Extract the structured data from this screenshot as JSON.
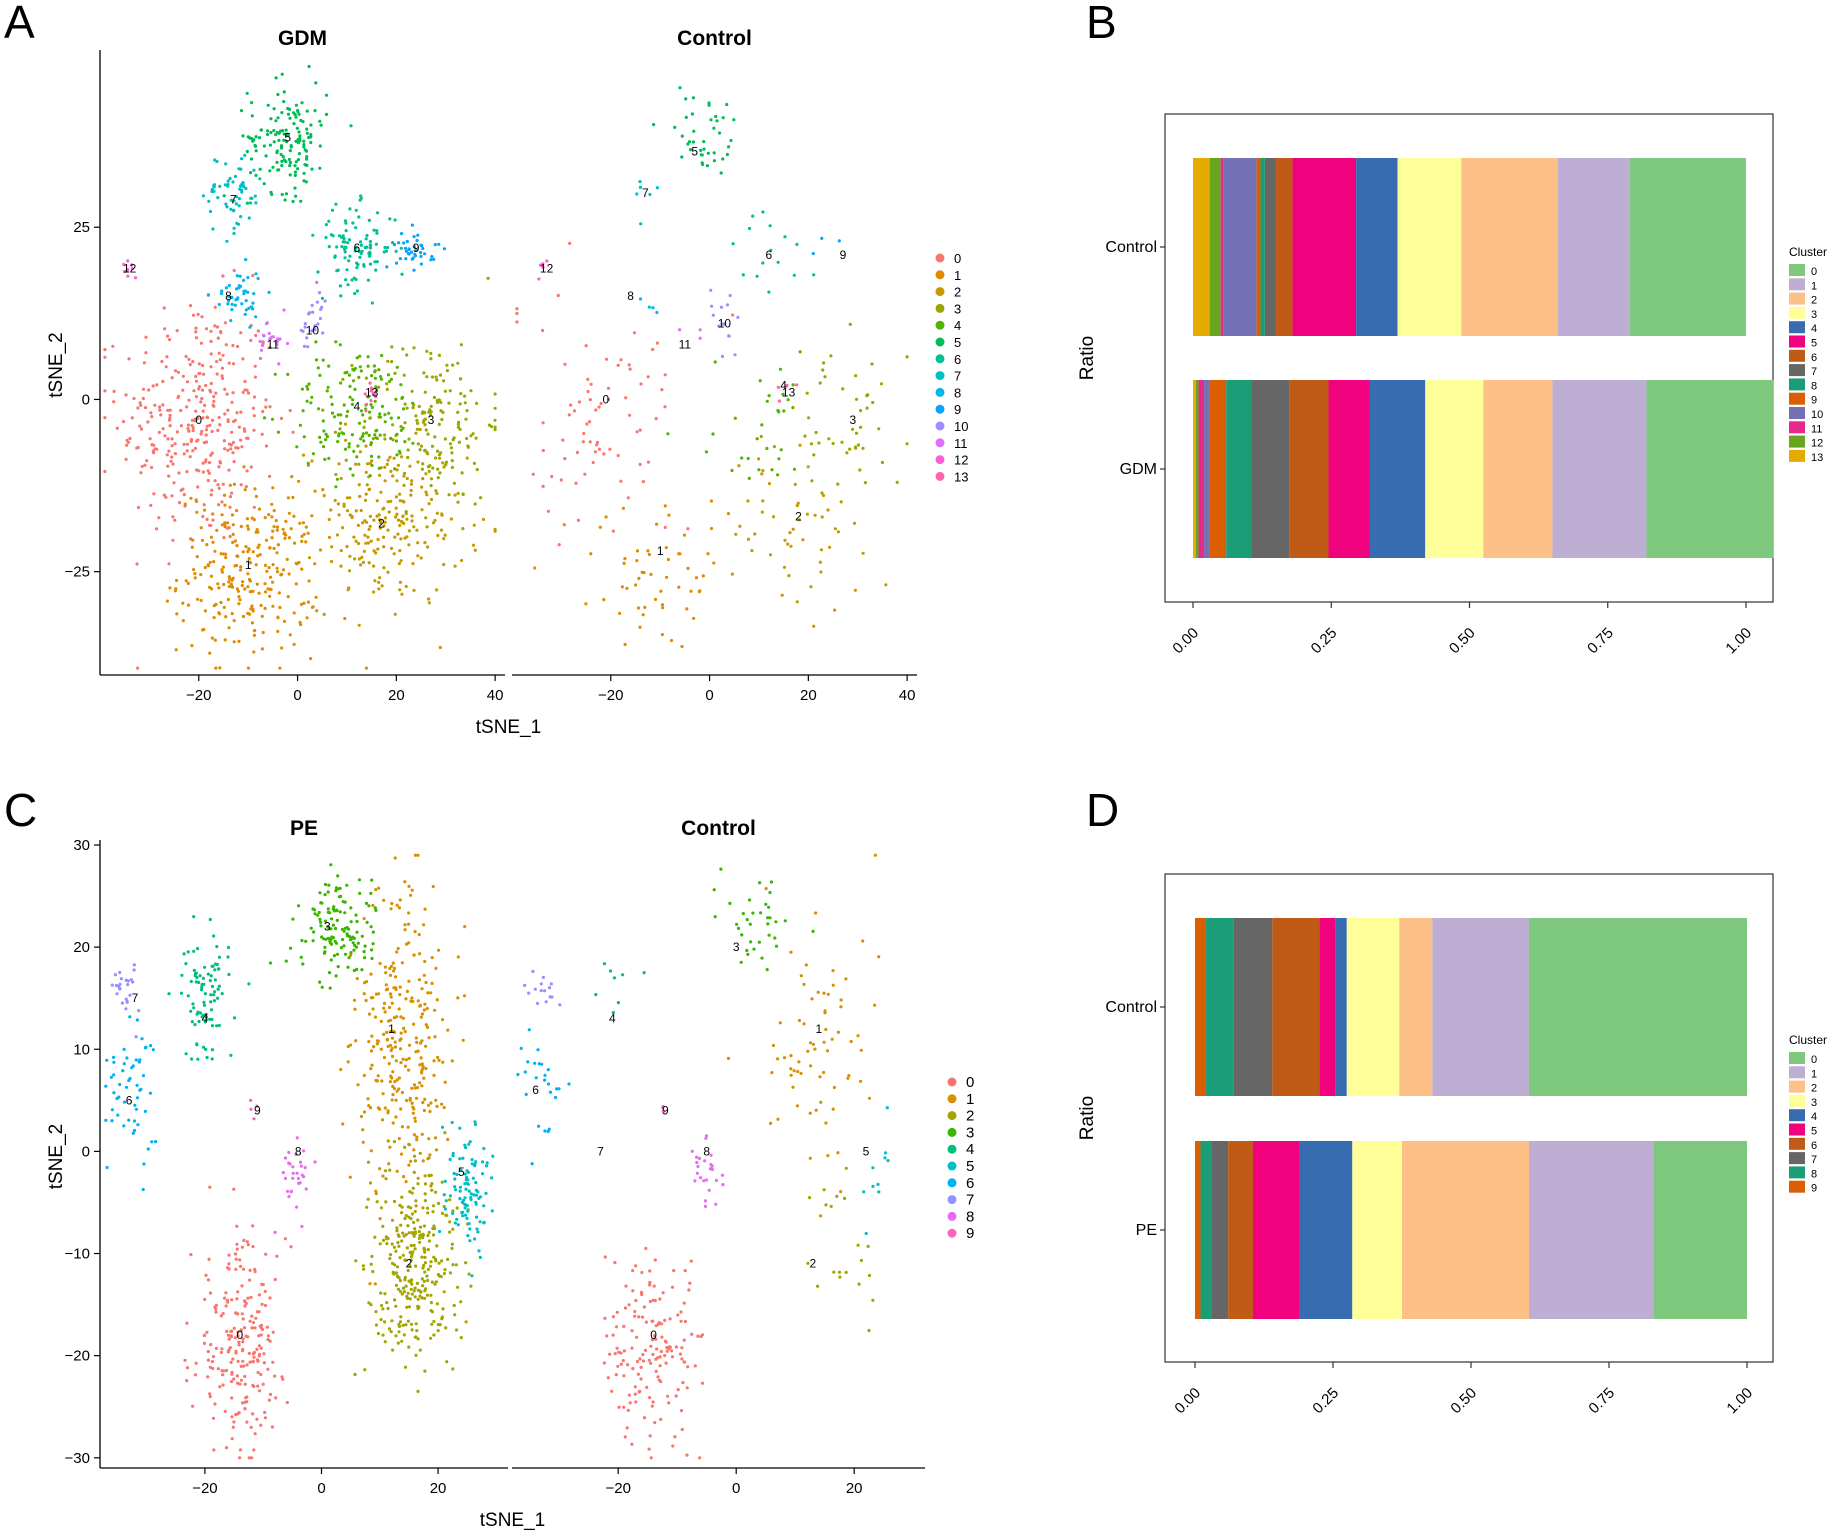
{
  "chart_data": [
    {
      "panel": "A",
      "type": "scatter",
      "xlabel": "tSNE_1",
      "ylabel": "tSNE_2",
      "facets": [
        "GDM",
        "Control"
      ],
      "xlim": [
        -40,
        42
      ],
      "ylim": [
        -40,
        50
      ],
      "xticks": [
        "-20",
        "0",
        "20",
        "40"
      ],
      "yticks": [
        "-25",
        "0",
        "25"
      ],
      "cluster_labels": [
        "0",
        "1",
        "2",
        "3",
        "4",
        "5",
        "6",
        "7",
        "8",
        "9",
        "10",
        "11",
        "12",
        "13"
      ],
      "colors": [
        "#F8766D",
        "#E08B00",
        "#C49A00",
        "#99A800",
        "#53B400",
        "#00BC56",
        "#00C094",
        "#00BFC4",
        "#00B6EB",
        "#06A4FF",
        "#A58AFF",
        "#DF70F8",
        "#FB61D7",
        "#FF66A8"
      ],
      "clusters": [
        {
          "id": "0",
          "cx": -20,
          "cy": -3,
          "sx": 8,
          "sy": 9,
          "n": [
            330,
            75
          ],
          "n_control_cx": -23
        },
        {
          "id": "1",
          "cx": -10,
          "cy": -25,
          "sx": 7,
          "sy": 6,
          "n": [
            260,
            55
          ]
        },
        {
          "id": "2",
          "cx": 18,
          "cy": -18,
          "sx": 8,
          "sy": 6,
          "n": [
            230,
            55
          ]
        },
        {
          "id": "3",
          "cx": 27,
          "cy": -3,
          "sx": 7,
          "sy": 6,
          "n": [
            170,
            45
          ]
        },
        {
          "id": "4",
          "cx": 12,
          "cy": -2,
          "sx": 7,
          "sy": 5,
          "n": [
            150,
            30
          ]
        },
        {
          "id": "5",
          "cx": -2,
          "cy": 38,
          "sx": 4,
          "sy": 4,
          "n": [
            150,
            40
          ]
        },
        {
          "id": "6",
          "cx": 12,
          "cy": 22,
          "sx": 4,
          "sy": 3,
          "n": [
            100,
            15
          ]
        },
        {
          "id": "7",
          "cx": -13,
          "cy": 30,
          "sx": 3,
          "sy": 3,
          "n": [
            60,
            6
          ]
        },
        {
          "id": "8",
          "cx": -12,
          "cy": 15,
          "sx": 2.5,
          "sy": 2,
          "n": [
            45,
            4
          ]
        },
        {
          "id": "9",
          "cx": 24,
          "cy": 22,
          "sx": 2,
          "sy": 1.5,
          "n": [
            40,
            3
          ]
        },
        {
          "id": "10",
          "cx": 3,
          "cy": 11,
          "sx": 1.5,
          "sy": 2.5,
          "n": [
            25,
            15
          ]
        },
        {
          "id": "11",
          "cx": -5,
          "cy": 8,
          "sx": 1.5,
          "sy": 2,
          "n": [
            20,
            3
          ]
        },
        {
          "id": "12",
          "cx": -34,
          "cy": 19,
          "sx": 0.8,
          "sy": 0.8,
          "n": [
            10,
            5
          ]
        },
        {
          "id": "13",
          "cx": 15,
          "cy": 1,
          "sx": 1,
          "sy": 1,
          "n": [
            10,
            4
          ]
        }
      ],
      "label_positions": {
        "GDM": [
          [
            -20,
            -3
          ],
          [
            -10,
            -24
          ],
          [
            17,
            -18
          ],
          [
            27,
            -3
          ],
          [
            12,
            -1
          ],
          [
            -2,
            38
          ],
          [
            12,
            22
          ],
          [
            -13,
            29
          ],
          [
            -14,
            15
          ],
          [
            24,
            22
          ],
          [
            3,
            10
          ],
          [
            -5,
            8
          ],
          [
            -34,
            19
          ],
          [
            15,
            1
          ]
        ],
        "Control": [
          [
            -21,
            0
          ],
          [
            -10,
            -22
          ],
          [
            18,
            -17
          ],
          [
            29,
            -3
          ],
          [
            15,
            2
          ],
          [
            -3,
            36
          ],
          [
            12,
            21
          ],
          [
            -13,
            30
          ],
          [
            -16,
            15
          ],
          [
            27,
            21
          ],
          [
            3,
            11
          ],
          [
            -5,
            8
          ],
          [
            -33,
            19
          ],
          [
            16,
            1
          ]
        ]
      }
    },
    {
      "panel": "B",
      "type": "bar",
      "orientation": "horizontal",
      "stacked": true,
      "ylabel": "Ratio",
      "categories": [
        "Control",
        "GDM"
      ],
      "xticks": [
        "0.00",
        "0.25",
        "0.50",
        "0.75",
        "1.00"
      ],
      "legend_title": "Cluster",
      "legend_labels": [
        "0",
        "1",
        "2",
        "3",
        "4",
        "5",
        "6",
        "7",
        "8",
        "9",
        "10",
        "11",
        "12",
        "13"
      ],
      "colors": [
        "#7FC97F",
        "#BEAED4",
        "#FDC086",
        "#FFFF99",
        "#386CB0",
        "#F0027F",
        "#BF5B17",
        "#666666",
        "#1B9E77",
        "#D95F02",
        "#7570B3",
        "#E7298A",
        "#66A61E",
        "#E6AB02"
      ],
      "series_order": [
        "13",
        "12",
        "11",
        "10",
        "9",
        "8",
        "7",
        "6",
        "5",
        "4",
        "3",
        "2",
        "1",
        "0"
      ],
      "values": {
        "Control": [
          0.21,
          0.13,
          0.175,
          0.115,
          0.075,
          0.115,
          0.03,
          0.02,
          0.008,
          0.007,
          0.06,
          0.005,
          0.02,
          0.03
        ],
        "GDM": [
          0.23,
          0.17,
          0.125,
          0.105,
          0.1,
          0.075,
          0.07,
          0.07,
          0.045,
          0.03,
          0.01,
          0.01,
          0.005,
          0.005
        ]
      }
    },
    {
      "panel": "C",
      "type": "scatter",
      "xlabel": "tSNE_1",
      "ylabel": "tSNE_2",
      "facets": [
        "PE",
        "Control"
      ],
      "xlim": [
        -38,
        32
      ],
      "ylim": [
        -31,
        30
      ],
      "xticks": [
        "-20",
        "0",
        "20"
      ],
      "yticks": [
        "-30",
        "-20",
        "-10",
        "0",
        "10",
        "20",
        "30"
      ],
      "cluster_labels": [
        "0",
        "1",
        "2",
        "3",
        "4",
        "5",
        "6",
        "7",
        "8",
        "9"
      ],
      "colors": [
        "#F8766D",
        "#D89000",
        "#A3A500",
        "#39B600",
        "#00BF7D",
        "#00BFC4",
        "#00B0F6",
        "#9590FF",
        "#E76BF3",
        "#FF62BC"
      ],
      "clusters": [
        {
          "id": "0",
          "cx": -14,
          "cy": -19,
          "sx": 4,
          "sy": 5,
          "n": [
            230,
            160
          ]
        },
        {
          "id": "1",
          "cx": 14,
          "cy": 10,
          "sx": 4,
          "sy": 8,
          "n": [
            300,
            70
          ]
        },
        {
          "id": "2",
          "cx": 16,
          "cy": -11,
          "sx": 4,
          "sy": 5,
          "n": [
            300,
            20
          ]
        },
        {
          "id": "3",
          "cx": 3,
          "cy": 22,
          "sx": 3.5,
          "sy": 2.5,
          "n": [
            130,
            35
          ]
        },
        {
          "id": "4",
          "cx": -20,
          "cy": 15,
          "sx": 2,
          "sy": 3,
          "n": [
            90,
            8
          ]
        },
        {
          "id": "5",
          "cx": 25,
          "cy": -3,
          "sx": 2,
          "sy": 3,
          "n": [
            100,
            10
          ]
        },
        {
          "id": "6",
          "cx": -33,
          "cy": 6,
          "sx": 2,
          "sy": 3,
          "n": [
            55,
            25
          ]
        },
        {
          "id": "7",
          "cx": -33,
          "cy": 16,
          "sx": 1.2,
          "sy": 1.5,
          "n": [
            25,
            15
          ]
        },
        {
          "id": "8",
          "cx": -5,
          "cy": -2,
          "sx": 1.5,
          "sy": 2,
          "n": [
            30,
            25
          ]
        },
        {
          "id": "9",
          "cx": -12,
          "cy": 4,
          "sx": 0.5,
          "sy": 0.8,
          "n": [
            4,
            3
          ]
        }
      ],
      "label_positions": {
        "PE": [
          [
            -14,
            -18
          ],
          [
            12,
            12
          ],
          [
            15,
            -11
          ],
          [
            1,
            22
          ],
          [
            -20,
            13
          ],
          [
            24,
            -2
          ],
          [
            -33,
            5
          ],
          [
            -32,
            15
          ],
          [
            -4,
            0
          ],
          [
            -11,
            4
          ]
        ],
        "Control": [
          [
            -14,
            -18
          ],
          [
            14,
            12
          ],
          [
            13,
            -11
          ],
          [
            0,
            20
          ],
          [
            -21,
            13
          ],
          [
            22,
            0
          ],
          [
            -34,
            6
          ],
          [
            -23,
            0
          ],
          [
            -5,
            0
          ],
          [
            -12,
            4
          ]
        ]
      }
    },
    {
      "panel": "D",
      "type": "bar",
      "orientation": "horizontal",
      "stacked": true,
      "ylabel": "Ratio",
      "categories": [
        "Control",
        "PE"
      ],
      "xticks": [
        "0.00",
        "0.25",
        "0.50",
        "0.75",
        "1.00"
      ],
      "legend_title": "Cluster",
      "legend_labels": [
        "0",
        "1",
        "2",
        "3",
        "4",
        "5",
        "6",
        "7",
        "8",
        "9"
      ],
      "colors": [
        "#7FC97F",
        "#BEAED4",
        "#FDC086",
        "#FFFF99",
        "#386CB0",
        "#F0027F",
        "#BF5B17",
        "#666666",
        "#1B9E77",
        "#D95F02"
      ],
      "series_order": [
        "9",
        "8",
        "7",
        "6",
        "5",
        "4",
        "3",
        "2",
        "1",
        "0"
      ],
      "values": {
        "Control": [
          0.395,
          0.175,
          0.06,
          0.095,
          0.02,
          0.03,
          0.085,
          0.07,
          0.05,
          0.02
        ],
        "PE": [
          0.17,
          0.225,
          0.23,
          0.09,
          0.095,
          0.085,
          0.045,
          0.03,
          0.02,
          0.01
        ]
      }
    }
  ],
  "panel_letters": [
    "A",
    "B",
    "C",
    "D"
  ],
  "labels": {
    "a_facet_left": "GDM",
    "a_facet_right": "Control",
    "c_facet_left": "PE",
    "c_facet_right": "Control"
  }
}
